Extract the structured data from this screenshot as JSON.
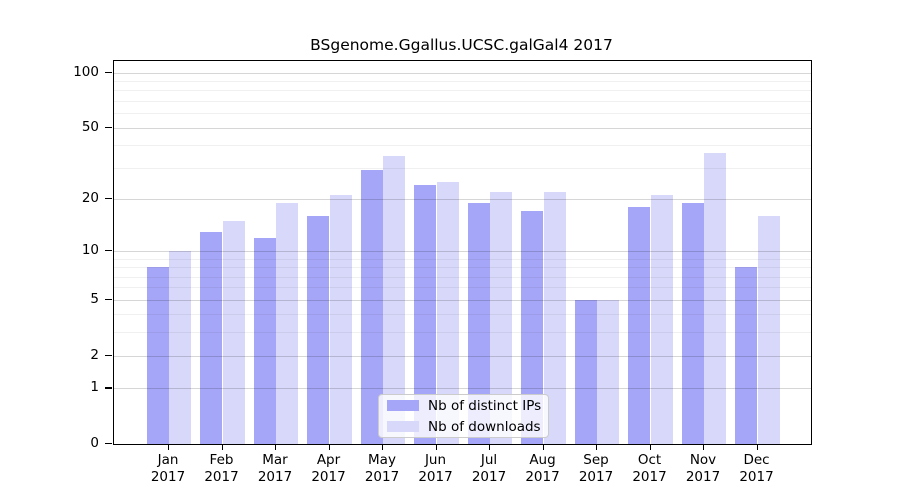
{
  "chart_data": {
    "type": "bar",
    "title": "BSgenome.Ggallus.UCSC.galGal4 2017",
    "categories": [
      "Jan",
      "Feb",
      "Mar",
      "Apr",
      "May",
      "Jun",
      "Jul",
      "Aug",
      "Sep",
      "Oct",
      "Nov",
      "Dec"
    ],
    "x_year_label": "2017",
    "series": [
      {
        "name": "Nb of distinct IPs",
        "color": "#a6a6f8",
        "values": [
          8,
          13,
          12,
          16,
          29,
          24,
          19,
          17,
          5,
          18,
          19,
          8
        ]
      },
      {
        "name": "Nb of downloads",
        "color": "#d8d8fa",
        "values": [
          10,
          15,
          19,
          21,
          35,
          25,
          22,
          22,
          5,
          21,
          36,
          16
        ]
      }
    ],
    "yscale": "log1p",
    "ylim": [
      0,
      116
    ],
    "ytick_labels": [
      100,
      50,
      20,
      10,
      5,
      2,
      1,
      0
    ],
    "minor_gridlines": [
      3,
      4,
      6,
      7,
      8,
      9,
      30,
      40,
      60,
      70,
      80,
      90
    ],
    "grid": "on",
    "legend_position": "lower center",
    "colors": {
      "spine": "#000000",
      "bar_distinct_ips": "#a6a6f8",
      "bar_downloads": "#d8d8fa",
      "legend_border": "#cccccc"
    }
  }
}
